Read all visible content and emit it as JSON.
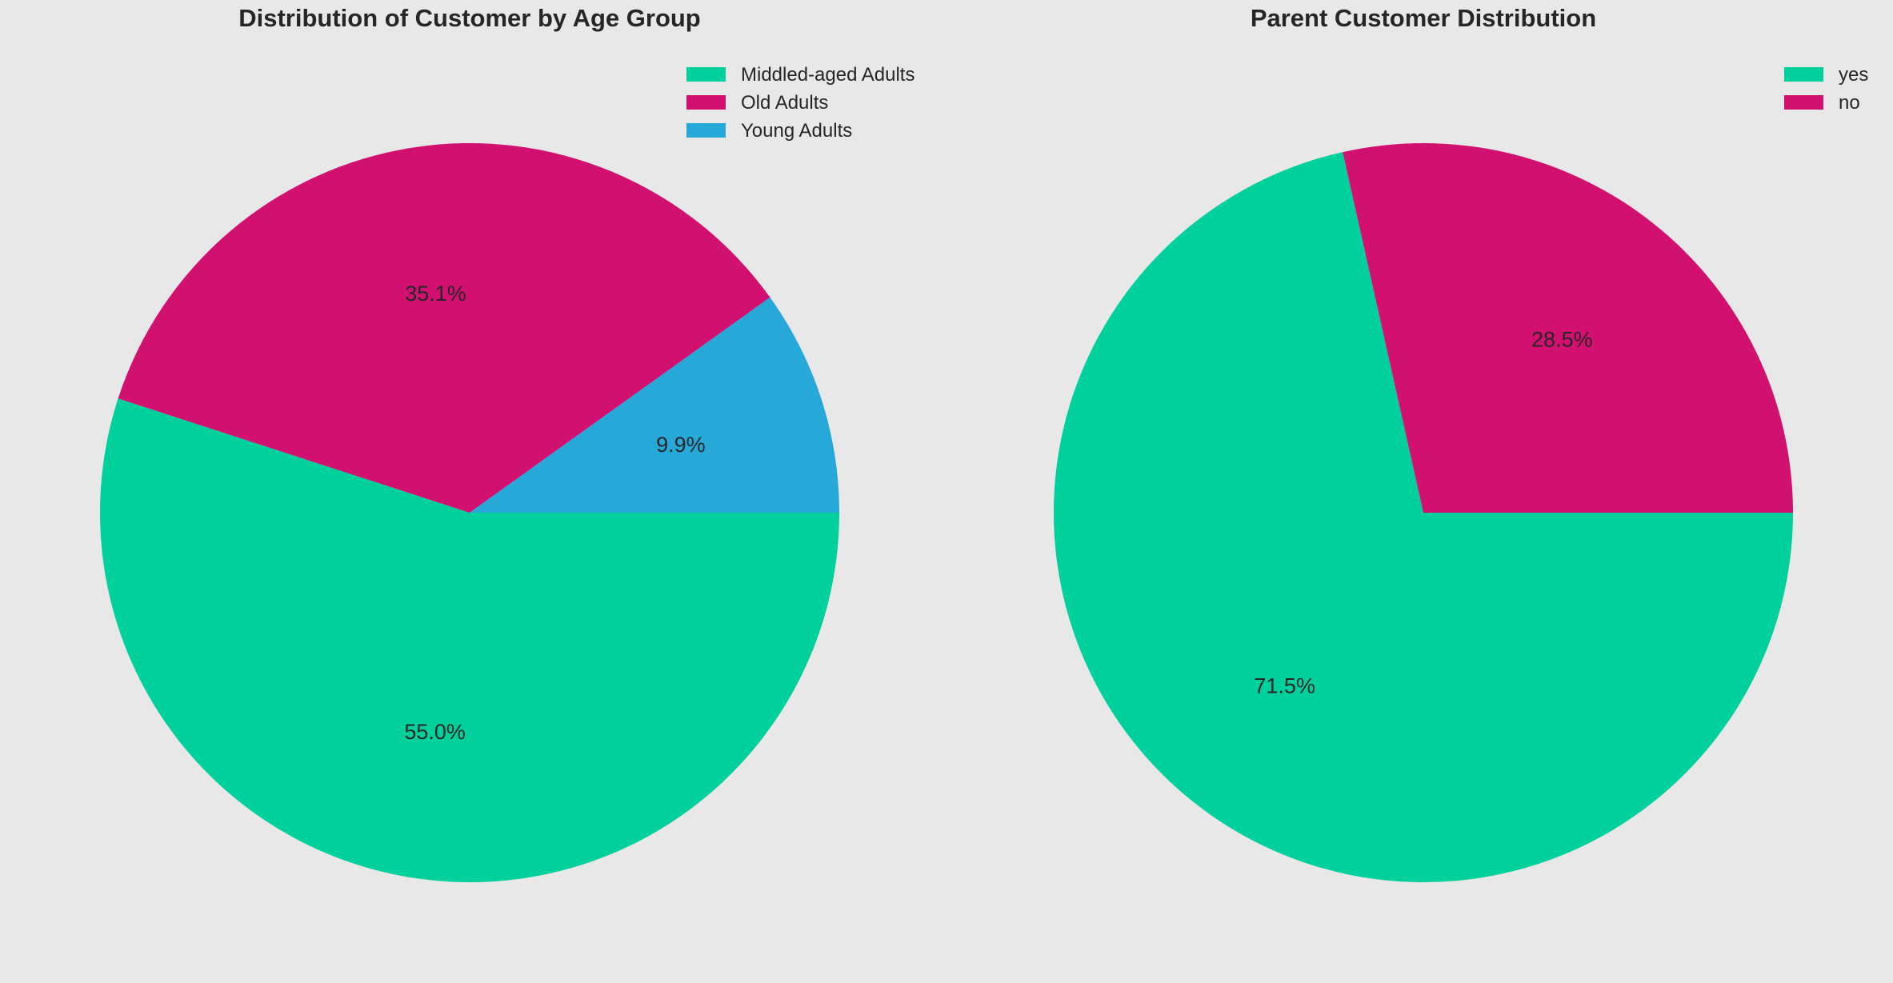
{
  "chart_data": [
    {
      "type": "pie",
      "title": "Distribution of Customer by Age Group",
      "categories": [
        "Middled-aged Adults",
        "Old Adults",
        "Young Adults"
      ],
      "values": [
        55.0,
        35.1,
        9.9
      ],
      "labels": [
        "55.0%",
        "35.1%",
        "9.9%"
      ],
      "colors": [
        "#00d09b",
        "#d1106f",
        "#26a8d8"
      ],
      "start": "3 o'clock",
      "direction": "clockwise",
      "legend": "top-right"
    },
    {
      "type": "pie",
      "title": "Parent Customer Distribution",
      "categories": [
        "yes",
        "no"
      ],
      "values": [
        71.5,
        28.5
      ],
      "labels": [
        "71.5%",
        "28.5%"
      ],
      "colors": [
        "#00d09b",
        "#d1106f"
      ],
      "start": "3 o'clock",
      "direction": "clockwise",
      "legend": "top-right"
    }
  ]
}
